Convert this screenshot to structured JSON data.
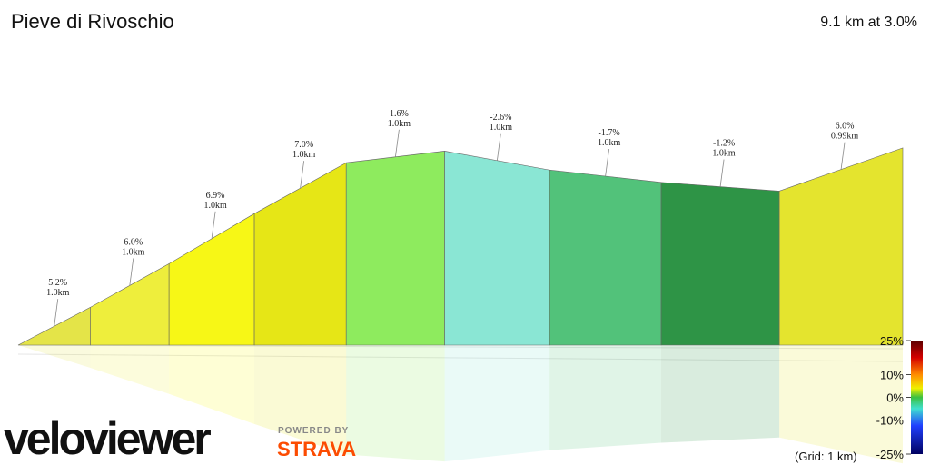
{
  "chart_data": {
    "type": "profile",
    "title": "Pieve di Rivoschio",
    "subtitle": "9.1 km at 3.0%",
    "values": [
      5.2,
      6.0,
      6.9,
      7.0,
      1.6,
      -2.6,
      -1.7,
      -1.2,
      6.0
    ],
    "value_labels": [
      "5.2%",
      "6.0%",
      "6.9%",
      "7.0%",
      "1.6%",
      "-2.6%",
      "-1.7%",
      "-1.2%",
      "6.0%"
    ],
    "distances": [
      1.0,
      1.0,
      1.0,
      1.0,
      1.0,
      1.0,
      1.0,
      1.0,
      0.99
    ],
    "distance_labels": [
      "1.0km",
      "1.0km",
      "1.0km",
      "1.0km",
      "1.0km",
      "1.0km",
      "1.0km",
      "1.0km",
      "0.99km"
    ],
    "colors": [
      "#e4e448",
      "#eeee3c",
      "#f7f716",
      "#e6e616",
      "#8eeb5e",
      "#8ae6d4",
      "#52c27a",
      "#2e9446",
      "#e4e42e"
    ],
    "colorbar": {
      "lim": [
        -25,
        25
      ],
      "ticks": [
        {
          "value": 25,
          "label": "25%"
        },
        {
          "value": 10,
          "label": "10%"
        },
        {
          "value": 0,
          "label": "0%"
        },
        {
          "value": -10,
          "label": "-10%"
        },
        {
          "value": -25,
          "label": "-25%"
        }
      ]
    },
    "grid_note": "(Grid: 1 km)"
  },
  "branding": {
    "logo": "veloviewer",
    "powered_by": "POWERED BY",
    "partner": "STRAVA"
  }
}
